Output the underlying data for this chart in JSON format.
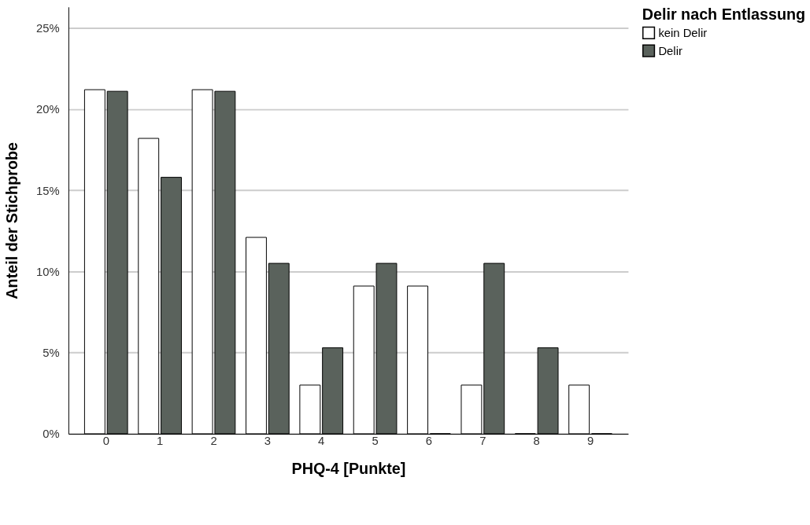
{
  "chart_data": {
    "type": "bar",
    "xlabel": "PHQ-4 [Punkte]",
    "ylabel": "Anteil der Stichprobe",
    "legend_title": "Delir nach Entlassung",
    "categories": [
      "0",
      "1",
      "2",
      "3",
      "4",
      "5",
      "6",
      "7",
      "8",
      "9"
    ],
    "series": [
      {
        "name": "kein Delir",
        "color": "#ffffff",
        "values": [
          21.2,
          18.2,
          21.2,
          12.1,
          3.0,
          9.1,
          9.1,
          3.0,
          0,
          3.0
        ]
      },
      {
        "name": "Delir",
        "color": "#5a625c",
        "values": [
          21.1,
          15.8,
          21.1,
          10.5,
          5.3,
          10.5,
          0,
          10.5,
          5.3,
          0
        ]
      }
    ],
    "ylim": [
      0,
      26.3
    ],
    "yticks": [
      {
        "value": 0,
        "label": "0%"
      },
      {
        "value": 5,
        "label": "5%"
      },
      {
        "value": 10,
        "label": "10%"
      },
      {
        "value": 15,
        "label": "15%"
      },
      {
        "value": 20,
        "label": "20%"
      },
      {
        "value": 25,
        "label": "25%"
      }
    ],
    "grid": "y",
    "legend": "top right"
  }
}
